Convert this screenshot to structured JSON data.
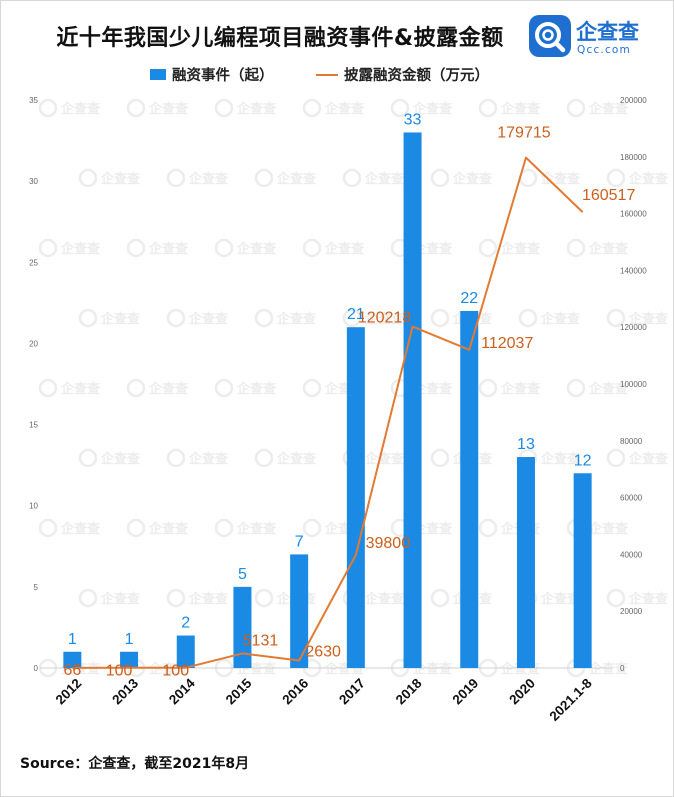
{
  "title": "近十年我国少儿编程项目融资事件&披露金额",
  "logo": {
    "name": "企查查",
    "sub": "Qcc.com"
  },
  "source": "Source：企查查，截至2021年8月",
  "colors": {
    "bar": "#1a8ae4",
    "line": "#e27a33",
    "bar_label": "#1a8ae4",
    "line_label": "#cc5f1c"
  },
  "chart_data": {
    "type": "bar+line",
    "categories": [
      "2012",
      "2013",
      "2014",
      "2015",
      "2016",
      "2017",
      "2018",
      "2019",
      "2020",
      "2021.1-8"
    ],
    "series": [
      {
        "name": "融资事件（起）",
        "type": "bar",
        "axis": "left",
        "values": [
          1,
          1,
          2,
          5,
          7,
          21,
          33,
          22,
          13,
          12
        ]
      },
      {
        "name": "披露融资金额（万元）",
        "type": "line",
        "axis": "right",
        "values": [
          66,
          100,
          100,
          5131,
          2630,
          39800,
          120218,
          112037,
          179715,
          160517
        ]
      }
    ],
    "ylim_left": [
      0,
      35
    ],
    "yticks_left": [
      0,
      5,
      10,
      15,
      20,
      25,
      30,
      35
    ],
    "ylim_right": [
      0,
      200000
    ],
    "yticks_right": [
      0,
      20000,
      40000,
      60000,
      80000,
      100000,
      120000,
      140000,
      160000,
      180000,
      200000
    ],
    "grid": false,
    "legend_position": "top-center"
  }
}
